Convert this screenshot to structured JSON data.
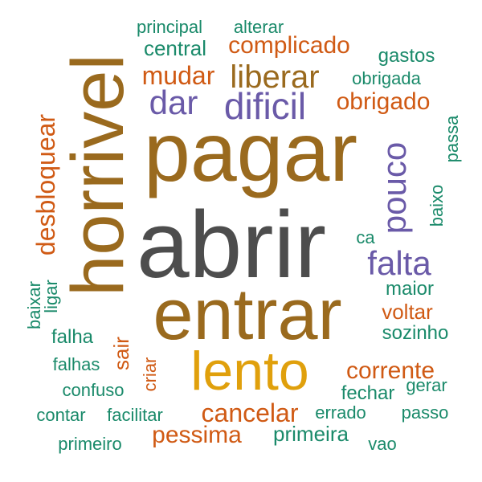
{
  "colors": {
    "gray": "#4d4d4d",
    "brown": "#9a6a1e",
    "gold": "#e0a00c",
    "orange": "#d05a14",
    "purple": "#6a5aa8",
    "green": "#1a8a6a"
  },
  "words": [
    {
      "text": "abrir",
      "color": "gray"
    },
    {
      "text": "pagar",
      "color": "brown"
    },
    {
      "text": "horrivel",
      "color": "brown"
    },
    {
      "text": "entrar",
      "color": "brown"
    },
    {
      "text": "lento",
      "color": "gold"
    },
    {
      "text": "dificil",
      "color": "purple"
    },
    {
      "text": "dar",
      "color": "purple"
    },
    {
      "text": "liberar",
      "color": "brown"
    },
    {
      "text": "falta",
      "color": "purple"
    },
    {
      "text": "pouco",
      "color": "purple"
    },
    {
      "text": "desbloquear",
      "color": "orange"
    },
    {
      "text": "complicado",
      "color": "orange"
    },
    {
      "text": "mudar",
      "color": "orange"
    },
    {
      "text": "obrigado",
      "color": "orange"
    },
    {
      "text": "cancelar",
      "color": "orange"
    },
    {
      "text": "pessima",
      "color": "orange"
    },
    {
      "text": "corrente",
      "color": "orange"
    },
    {
      "text": "voltar",
      "color": "orange"
    },
    {
      "text": "sair",
      "color": "orange"
    },
    {
      "text": "criar",
      "color": "orange"
    },
    {
      "text": "principal",
      "color": "green"
    },
    {
      "text": "alterar",
      "color": "green"
    },
    {
      "text": "central",
      "color": "green"
    },
    {
      "text": "gastos",
      "color": "green"
    },
    {
      "text": "obrigada",
      "color": "green"
    },
    {
      "text": "passa",
      "color": "green"
    },
    {
      "text": "baixo",
      "color": "green"
    },
    {
      "text": "ca",
      "color": "green"
    },
    {
      "text": "maior",
      "color": "green"
    },
    {
      "text": "sozinho",
      "color": "green"
    },
    {
      "text": "fechar",
      "color": "green"
    },
    {
      "text": "gerar",
      "color": "green"
    },
    {
      "text": "errado",
      "color": "green"
    },
    {
      "text": "passo",
      "color": "green"
    },
    {
      "text": "primeira",
      "color": "green"
    },
    {
      "text": "vao",
      "color": "green"
    },
    {
      "text": "primeiro",
      "color": "green"
    },
    {
      "text": "contar",
      "color": "green"
    },
    {
      "text": "facilitar",
      "color": "green"
    },
    {
      "text": "confuso",
      "color": "green"
    },
    {
      "text": "falhas",
      "color": "green"
    },
    {
      "text": "falha",
      "color": "green"
    },
    {
      "text": "baixar",
      "color": "green"
    },
    {
      "text": "ligar",
      "color": "green"
    }
  ]
}
